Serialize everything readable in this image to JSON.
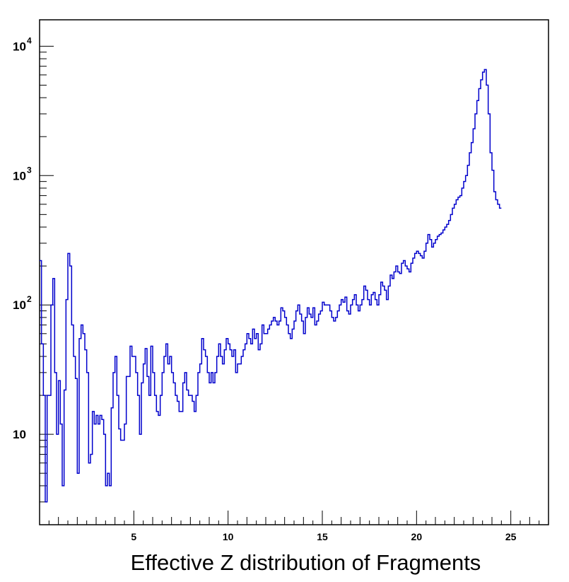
{
  "chart_data": {
    "type": "step-histogram",
    "title": "",
    "xlabel": "Effective Z distribution of Fragments",
    "ylabel": "",
    "xlim": [
      0,
      27
    ],
    "ylim": [
      2,
      16000
    ],
    "yscale": "log",
    "grid": false,
    "line_color": "#0000cc",
    "x_ticks": [
      5,
      10,
      15,
      20,
      25
    ],
    "x_tick_labels": [
      "5",
      "10",
      "15",
      "20",
      "25"
    ],
    "y_tick_labels": [
      {
        "value": 10000,
        "base": "10",
        "exp": "4"
      },
      {
        "value": 1000,
        "base": "10",
        "exp": "3"
      },
      {
        "value": 100,
        "base": "10",
        "exp": "2"
      },
      {
        "value": 10,
        "base": "10",
        "exp": ""
      }
    ],
    "bin_width": 0.1,
    "series": [
      {
        "values": [
          220,
          50,
          20,
          3,
          20,
          20,
          100,
          160,
          30,
          10,
          26,
          12,
          4,
          22,
          110,
          250,
          200,
          70,
          40,
          27,
          5,
          55,
          70,
          60,
          45,
          30,
          6,
          7,
          15,
          12,
          14,
          12,
          14,
          13,
          10,
          4,
          5,
          4,
          16,
          30,
          40,
          20,
          11,
          9,
          9,
          12,
          28,
          28,
          48,
          40,
          40,
          30,
          20,
          10,
          25,
          35,
          46,
          28,
          20,
          48,
          30,
          20,
          15,
          14,
          20,
          30,
          40,
          50,
          35,
          40,
          30,
          25,
          20,
          18,
          15,
          15,
          25,
          30,
          22,
          20,
          20,
          18,
          15,
          20,
          30,
          35,
          55,
          45,
          40,
          30,
          25,
          30,
          25,
          30,
          40,
          50,
          40,
          35,
          45,
          55,
          50,
          45,
          40,
          45,
          30,
          35,
          35,
          40,
          45,
          50,
          60,
          55,
          50,
          65,
          55,
          60,
          45,
          50,
          70,
          60,
          60,
          65,
          70,
          75,
          80,
          75,
          70,
          75,
          95,
          90,
          80,
          70,
          60,
          55,
          65,
          75,
          90,
          100,
          85,
          75,
          60,
          80,
          95,
          85,
          80,
          95,
          70,
          75,
          85,
          90,
          105,
          100,
          100,
          100,
          90,
          80,
          75,
          80,
          90,
          100,
          110,
          105,
          115,
          90,
          85,
          100,
          110,
          120,
          100,
          90,
          100,
          110,
          140,
          130,
          110,
          100,
          120,
          125,
          110,
          100,
          120,
          150,
          140,
          130,
          110,
          140,
          170,
          160,
          180,
          200,
          180,
          175,
          210,
          220,
          200,
          190,
          180,
          210,
          230,
          250,
          260,
          250,
          240,
          230,
          260,
          300,
          350,
          320,
          280,
          300,
          320,
          340,
          350,
          360,
          380,
          400,
          420,
          450,
          500,
          560,
          600,
          650,
          680,
          700,
          800,
          900,
          1000,
          1200,
          1500,
          1800,
          2300,
          3000,
          3800,
          4700,
          5500,
          6300,
          6600,
          5000,
          3000,
          1500,
          1100,
          750,
          650,
          600,
          560
        ]
      }
    ]
  }
}
